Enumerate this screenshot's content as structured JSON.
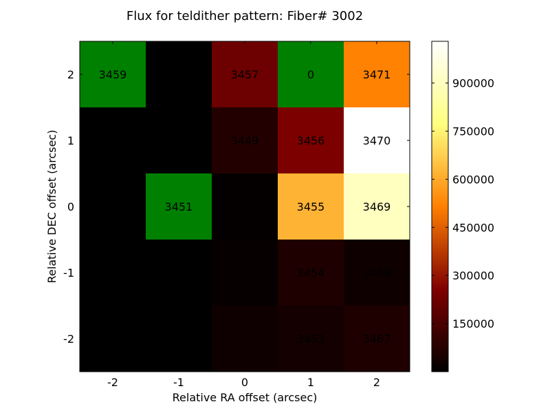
{
  "chart_data": {
    "type": "heatmap",
    "title": "Flux for teldither pattern: Fiber# 3002",
    "xlabel": "Relative RA offset (arcsec)",
    "ylabel": "Relative DEC offset (arcsec)",
    "x_ticks": [
      "-2",
      "-1",
      "0",
      "1",
      "2"
    ],
    "y_ticks": [
      "2",
      "1",
      "0",
      "-1",
      "-2"
    ],
    "colorbar": {
      "colormap": "afmhot",
      "vmin": 0,
      "vmax": 1030000,
      "ticks": [
        150000,
        300000,
        450000,
        600000,
        750000,
        900000
      ],
      "tick_labels": [
        "150000",
        "300000",
        "450000",
        "600000",
        "750000",
        "900000"
      ]
    },
    "nodata_color": "#008000",
    "cells": [
      {
        "ra": -2,
        "dec": 2,
        "flux": null,
        "label": "3459"
      },
      {
        "ra": -1,
        "dec": 2,
        "flux": 0,
        "label": ""
      },
      {
        "ra": 0,
        "dec": 2,
        "flux": 220000,
        "label": "3457"
      },
      {
        "ra": 1,
        "dec": 2,
        "flux": null,
        "label": "0"
      },
      {
        "ra": 2,
        "dec": 2,
        "flux": 520000,
        "label": "3471"
      },
      {
        "ra": -2,
        "dec": 1,
        "flux": 0,
        "label": ""
      },
      {
        "ra": -1,
        "dec": 1,
        "flux": 0,
        "label": ""
      },
      {
        "ra": 0,
        "dec": 1,
        "flux": 70000,
        "label": "3449"
      },
      {
        "ra": 1,
        "dec": 1,
        "flux": 250000,
        "label": "3456"
      },
      {
        "ra": 2,
        "dec": 1,
        "flux": 1030000,
        "label": "3470"
      },
      {
        "ra": -2,
        "dec": 0,
        "flux": 0,
        "label": ""
      },
      {
        "ra": -1,
        "dec": 0,
        "flux": null,
        "label": "3451"
      },
      {
        "ra": 0,
        "dec": 0,
        "flux": 10000,
        "label": ""
      },
      {
        "ra": 1,
        "dec": 0,
        "flux": 620000,
        "label": "3455"
      },
      {
        "ra": 2,
        "dec": 0,
        "flux": 900000,
        "label": "3469"
      },
      {
        "ra": -2,
        "dec": -1,
        "flux": 0,
        "label": ""
      },
      {
        "ra": -1,
        "dec": -1,
        "flux": 0,
        "label": ""
      },
      {
        "ra": 0,
        "dec": -1,
        "flux": 15000,
        "label": ""
      },
      {
        "ra": 1,
        "dec": -1,
        "flux": 60000,
        "label": "3454"
      },
      {
        "ra": 2,
        "dec": -1,
        "flux": 30000,
        "label": "3468"
      },
      {
        "ra": -2,
        "dec": -2,
        "flux": 0,
        "label": ""
      },
      {
        "ra": -1,
        "dec": -2,
        "flux": 0,
        "label": ""
      },
      {
        "ra": 0,
        "dec": -2,
        "flux": 30000,
        "label": ""
      },
      {
        "ra": 1,
        "dec": -2,
        "flux": 40000,
        "label": "3453"
      },
      {
        "ra": 2,
        "dec": -2,
        "flux": 60000,
        "label": "3467"
      }
    ]
  }
}
